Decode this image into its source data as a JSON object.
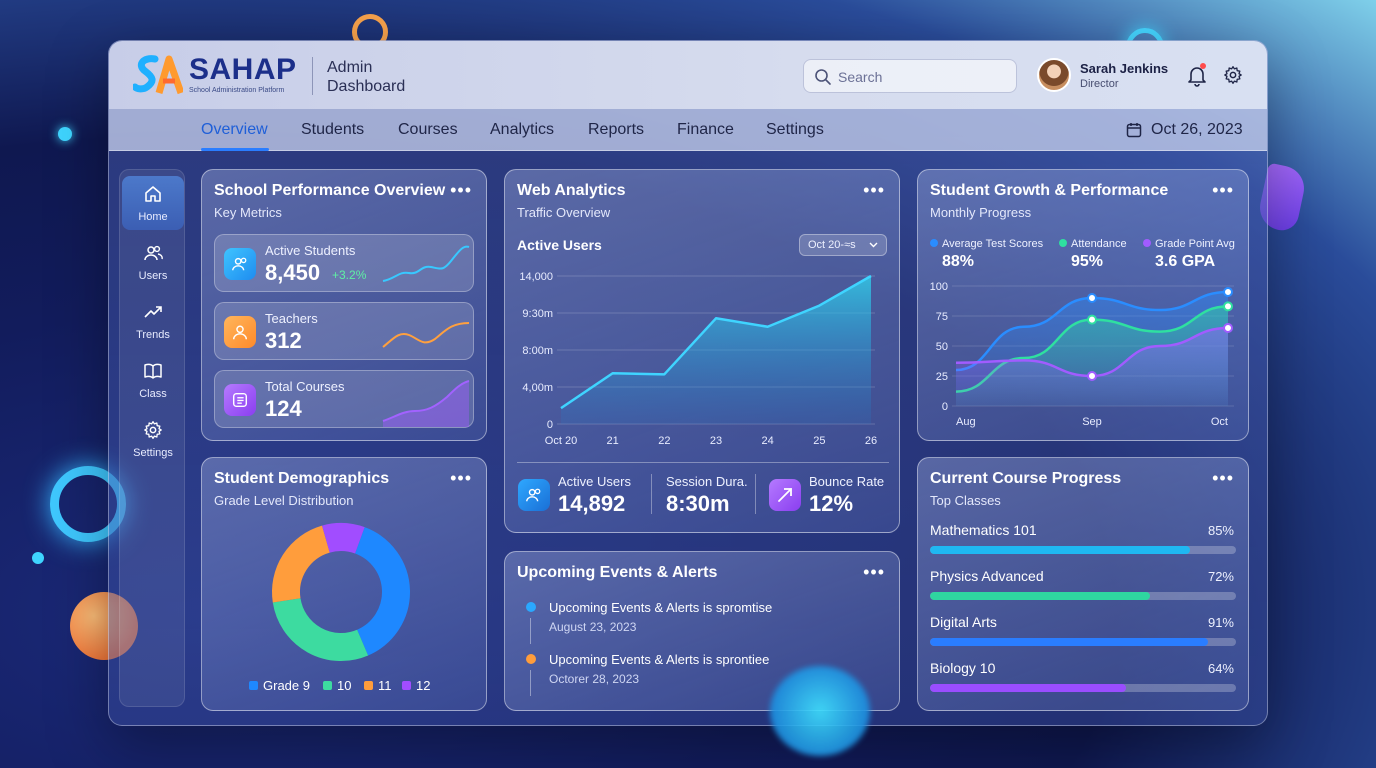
{
  "brand": {
    "name": "SAHAP",
    "tagline": "School Administration Platform",
    "app_title_line1": "Admin",
    "app_title_line2": "Dashboard"
  },
  "header": {
    "search_placeholder": "Search",
    "user_name": "Sarah Jenkins",
    "user_role": "Director",
    "icons": [
      "search-icon",
      "bell-icon",
      "gear-icon"
    ]
  },
  "nav": {
    "tabs": [
      "Overview",
      "Students",
      "Courses",
      "Analytics",
      "Reports",
      "Finance",
      "Settings"
    ],
    "active": "Overview",
    "date": "Oct 26, 2023"
  },
  "sidebar": {
    "items": [
      {
        "label": "Home",
        "icon": "home-icon",
        "active": true
      },
      {
        "label": "Users",
        "icon": "users-icon"
      },
      {
        "label": "Trends",
        "icon": "trend-icon"
      },
      {
        "label": "Class",
        "icon": "book-icon"
      },
      {
        "label": "Settings",
        "icon": "gear-icon"
      }
    ]
  },
  "performance": {
    "title": "School Performance Overview",
    "subtitle": "Key Metrics",
    "more": "•••",
    "metrics": [
      {
        "label": "Active Students",
        "value": "8,450",
        "change": "+3.2%",
        "color": "#2fb6ff"
      },
      {
        "label": "Teachers",
        "value": "312",
        "change": "",
        "color": "#ff9d3c"
      },
      {
        "label": "Total Courses",
        "value": "124",
        "change": "",
        "color": "#9a57ff"
      }
    ]
  },
  "demographics": {
    "title": "Student Demographics",
    "subtitle": "Grade Level Distribution",
    "more": "•••",
    "legend": [
      {
        "label": "Grade 9",
        "color": "#1e88ff"
      },
      {
        "label": "10",
        "color": "#3ddba0"
      },
      {
        "label": "11",
        "color": "#ff9d3c"
      },
      {
        "label": "12",
        "color": "#a14dff"
      }
    ]
  },
  "web_analytics": {
    "title": "Web Analytics",
    "subtitle": "Traffic Overview",
    "more": "•••",
    "chart_title": "Active Users",
    "range_selector": "Oct 20-≈s",
    "footer": [
      {
        "label": "Active Users",
        "value": "14,892",
        "icon": "users-icon"
      },
      {
        "label": "Session Dura.",
        "value": "8:30m"
      },
      {
        "label": "Bounce Rate",
        "value": "12%",
        "icon": "trend-up-icon"
      }
    ]
  },
  "growth": {
    "title": "Student Growth & Performance",
    "subtitle": "Monthly Progress",
    "more": "•••",
    "legend": [
      {
        "label": "Average Test Scores",
        "value": "88%",
        "color": "#2a8dff"
      },
      {
        "label": "Attendance",
        "value": "95%",
        "color": "#2fe0a0"
      },
      {
        "label": "Grade Point Avg",
        "value": "3.6 GPA",
        "color": "#a15cff"
      }
    ]
  },
  "events": {
    "title": "Upcoming Events & Alerts",
    "more": "•••",
    "items": [
      {
        "title": "Upcoming Events & Alerts",
        "suffix": " is spromtise",
        "date": "August 23, 2023",
        "color": "#2aa8ff"
      },
      {
        "title": "Upcoming Events & Alerts",
        "suffix": " is sprontiee",
        "date": "Octorer 28, 2023",
        "color": "#ff9d3c"
      }
    ]
  },
  "course_progress": {
    "title": "Current Course Progress",
    "subtitle": "Top Classes",
    "more": "•••",
    "items": [
      {
        "label": "Mathematics 101",
        "pct": "85%",
        "value": 0.85,
        "color": "#1fb8f2"
      },
      {
        "label": "Physics Advanced",
        "pct": "72%",
        "value": 0.72,
        "color": "#2fd6a0"
      },
      {
        "label": "Digital Arts",
        "pct": "91%",
        "value": 0.91,
        "color": "#2a7dff"
      },
      {
        "label": "Biology 10",
        "pct": "64%",
        "value": 0.64,
        "color": "#9a4dff"
      }
    ]
  },
  "chart_data": [
    {
      "type": "area",
      "title": "Active Users",
      "categories": [
        "Oct 20",
        "21",
        "22",
        "23",
        "24",
        "25",
        "26"
      ],
      "y_tick_labels": [
        "14,000",
        "9:30m",
        "8:00m",
        "4,00m",
        "0"
      ],
      "ylim": [
        0,
        14000
      ],
      "series": [
        {
          "values": [
            1500,
            4800,
            4700,
            10000,
            9200,
            11200,
            14000
          ]
        }
      ],
      "grid": true
    },
    {
      "type": "pie",
      "title": "Student Demographics",
      "categories": [
        "Grade 9",
        "10",
        "11",
        "12"
      ],
      "values": [
        38,
        29,
        23,
        10
      ]
    },
    {
      "type": "area",
      "title": "Student Growth & Performance",
      "x_tick_labels": [
        "Aug",
        "Sep",
        "Oct"
      ],
      "ylim": [
        0,
        100
      ],
      "y_ticks": [
        100,
        75,
        50,
        25,
        0
      ],
      "series": [
        {
          "name": "Average Test Scores",
          "values": [
            30,
            66,
            90,
            80,
            95
          ]
        },
        {
          "name": "Attendance",
          "values": [
            12,
            40,
            72,
            62,
            83
          ]
        },
        {
          "name": "Grade Point Avg",
          "values": [
            36,
            38,
            25,
            50,
            65
          ]
        }
      ]
    }
  ]
}
